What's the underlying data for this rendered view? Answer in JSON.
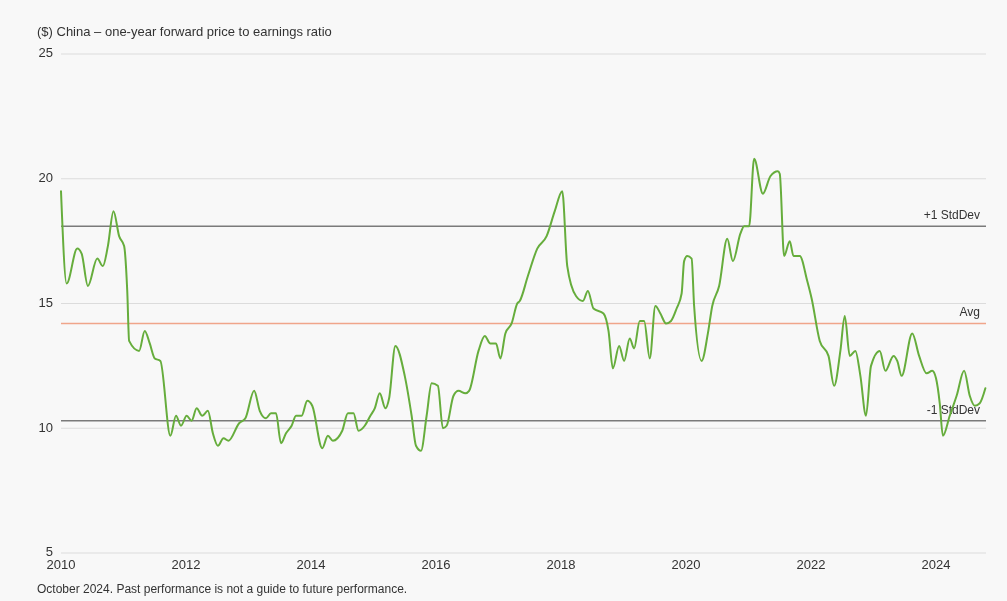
{
  "chart_data": {
    "type": "line",
    "ylabel": "($) China – one-year forward price to earnings ratio",
    "annotations": [
      "October 2024. Past performance is not a guide to future performance."
    ],
    "x": [
      2010.0,
      2010.09,
      2010.26,
      2010.33,
      2010.43,
      2010.58,
      2010.67,
      2010.75,
      2010.84,
      2010.93,
      2011.01,
      2011.06,
      2011.09,
      2011.25,
      2011.34,
      2011.42,
      2011.5,
      2011.59,
      2011.75,
      2011.84,
      2011.92,
      2012.01,
      2012.09,
      2012.17,
      2012.26,
      2012.35,
      2012.43,
      2012.51,
      2012.6,
      2012.68,
      2012.85,
      2012.95,
      2013.09,
      2013.18,
      2013.28,
      2013.36,
      2013.44,
      2013.52,
      2013.6,
      2013.69,
      2013.76,
      2013.85,
      2013.94,
      2014.02,
      2014.18,
      2014.27,
      2014.35,
      2014.5,
      2014.59,
      2014.68,
      2014.76,
      2014.86,
      2014.95,
      2015.02,
      2015.1,
      2015.19,
      2015.25,
      2015.35,
      2015.5,
      2015.61,
      2015.68,
      2015.76,
      2015.85,
      2015.93,
      2016.03,
      2016.11,
      2016.17,
      2016.28,
      2016.36,
      2016.47,
      2016.53,
      2016.68,
      2016.78,
      2016.87,
      2016.96,
      2017.03,
      2017.11,
      2017.21,
      2017.3,
      2017.34,
      2017.47,
      2017.62,
      2017.77,
      2017.9,
      2018.02,
      2018.1,
      2018.24,
      2018.35,
      2018.43,
      2018.52,
      2018.68,
      2018.76,
      2018.83,
      2018.93,
      2019.01,
      2019.1,
      2019.17,
      2019.26,
      2019.33,
      2019.42,
      2019.51,
      2019.59,
      2019.68,
      2019.76,
      2019.85,
      2019.93,
      2019.97,
      2020.02,
      2020.09,
      2020.13,
      2020.25,
      2020.35,
      2020.42,
      2020.53,
      2020.66,
      2020.75,
      2020.87,
      2020.93,
      2021.01,
      2021.09,
      2021.23,
      2021.35,
      2021.47,
      2021.5,
      2021.57,
      2021.66,
      2021.72,
      2021.82,
      2021.94,
      2022.01,
      2022.14,
      2022.28,
      2022.37,
      2022.47,
      2022.54,
      2022.62,
      2022.71,
      2022.79,
      2022.88,
      2022.96,
      2023.1,
      2023.19,
      2023.32,
      2023.38,
      2023.45,
      2023.62,
      2023.73,
      2023.85,
      2023.94,
      2024.0,
      2024.06,
      2024.11,
      2024.22,
      2024.33,
      2024.45,
      2024.54,
      2024.62,
      2024.7,
      2024.79
    ],
    "series": [
      {
        "color": "#66ad3c",
        "values": [
          19.5,
          15.8,
          17.2,
          17.0,
          15.7,
          16.8,
          16.5,
          17.3,
          18.7,
          17.7,
          17.3,
          15.5,
          13.5,
          13.1,
          13.9,
          13.4,
          12.8,
          12.7,
          9.7,
          10.5,
          10.1,
          10.5,
          10.3,
          10.8,
          10.5,
          10.7,
          9.8,
          9.3,
          9.6,
          9.5,
          10.2,
          10.4,
          11.5,
          10.7,
          10.4,
          10.6,
          10.6,
          9.4,
          9.8,
          10.1,
          10.5,
          10.5,
          11.1,
          10.9,
          9.2,
          9.7,
          9.5,
          9.9,
          10.6,
          10.6,
          9.9,
          10.1,
          10.5,
          10.8,
          11.4,
          10.8,
          11.2,
          13.3,
          12.1,
          10.5,
          9.3,
          9.1,
          10.5,
          11.8,
          11.7,
          10.0,
          10.1,
          11.3,
          11.5,
          11.4,
          11.5,
          13.1,
          13.7,
          13.4,
          13.4,
          12.8,
          13.8,
          14.2,
          15.0,
          15.1,
          16.1,
          17.2,
          17.7,
          18.7,
          19.5,
          16.5,
          15.3,
          15.1,
          15.5,
          14.8,
          14.6,
          13.9,
          12.4,
          13.3,
          12.7,
          13.6,
          13.2,
          14.3,
          14.3,
          12.8,
          14.9,
          14.6,
          14.2,
          14.3,
          14.8,
          15.4,
          16.7,
          16.9,
          16.8,
          14.9,
          12.7,
          13.8,
          14.9,
          15.7,
          17.6,
          16.7,
          17.8,
          18.1,
          18.1,
          20.8,
          19.4,
          20.1,
          20.3,
          20.2,
          16.9,
          17.5,
          16.9,
          16.9,
          15.9,
          15.2,
          13.5,
          12.9,
          11.7,
          13.1,
          14.5,
          12.9,
          13.1,
          12.1,
          10.5,
          12.5,
          13.1,
          12.3,
          12.9,
          12.7,
          12.1,
          13.8,
          12.9,
          12.2,
          12.3,
          12.0,
          11.0,
          9.7,
          10.5,
          11.3,
          12.3,
          11.3,
          10.9,
          11.0,
          11.6
        ]
      }
    ],
    "xlim": [
      2010,
      2024.8
    ],
    "xticks": [
      2010,
      2012,
      2014,
      2016,
      2018,
      2020,
      2022,
      2024
    ],
    "ylim": [
      5,
      25
    ],
    "yticks": [
      5,
      10,
      15,
      20,
      25
    ],
    "grid": "y",
    "ref_lines": [
      {
        "axis": "y",
        "value": 18.1,
        "label": "+1 StdDev",
        "color": "#7a7a7a"
      },
      {
        "axis": "y",
        "value": 14.2,
        "label": "Avg",
        "color": "#f0a58a"
      },
      {
        "axis": "y",
        "value": 10.3,
        "label": "-1 StdDev",
        "color": "#7a7a7a"
      }
    ]
  }
}
